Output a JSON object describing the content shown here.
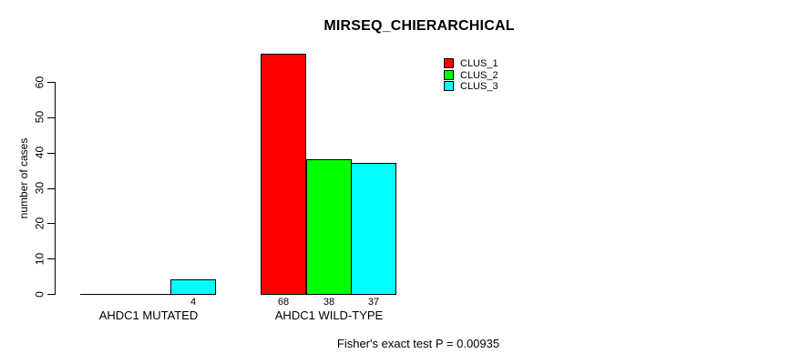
{
  "chart_data": {
    "type": "bar",
    "title": "MIRSEQ_CHIERARCHICAL",
    "ylabel": "number of cases",
    "xlabel": "",
    "categories": [
      "AHDC1 MUTATED",
      "AHDC1 WILD-TYPE"
    ],
    "series": [
      {
        "name": "CLUS_1",
        "color": "#FF0000",
        "values": [
          0,
          68
        ]
      },
      {
        "name": "CLUS_2",
        "color": "#00FF00",
        "values": [
          0,
          38
        ]
      },
      {
        "name": "CLUS_3",
        "color": "#00FFFF",
        "values": [
          4,
          37
        ]
      }
    ],
    "bar_value_labels": [
      "4",
      "68",
      "38",
      "37"
    ],
    "bar_value_labels_note": "labels shown under non-zero bars only",
    "yticks": [
      0,
      10,
      20,
      30,
      40,
      50,
      60
    ],
    "ylim": [
      0,
      68
    ],
    "grid": false,
    "legend": {
      "position": "top-right-inside",
      "entries": [
        {
          "label": "CLUS_1",
          "color": "#FF0000"
        },
        {
          "label": "CLUS_2",
          "color": "#00FF00"
        },
        {
          "label": "CLUS_3",
          "color": "#00FFFF"
        }
      ]
    },
    "annotation": "Fisher's exact test P = 0.00935",
    "axis_color": "#000000",
    "background_color": "#FFFFFF"
  }
}
